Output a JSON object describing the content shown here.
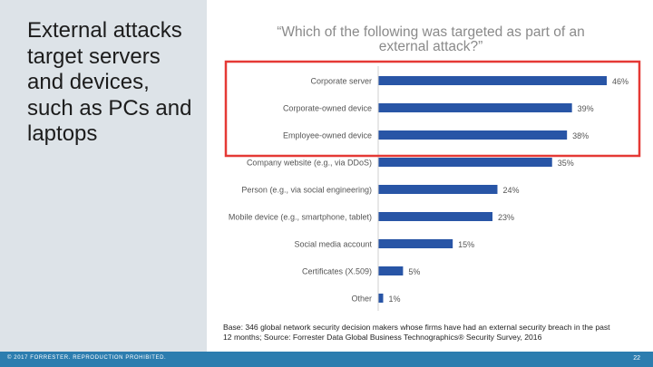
{
  "slide": {
    "title": "External attacks target servers and devices, such as PCs and laptops",
    "footer": {
      "copyright": "© 2017 FORRESTER. REPRODUCTION PROHIBITED.",
      "page_number": "22"
    },
    "base_note_line1": "Base: 346 global network security decision makers whose firms have had an external security breach in the past",
    "base_note_line2": "12 months; Source: Forrester Data Global Business Technographics® Security Survey, 2016",
    "colors": {
      "left_panel": "#dde3e8",
      "bar": "#2855a6",
      "highlight_box": "#e53935",
      "footer_bar": "#2c7daf"
    }
  },
  "chart_data": {
    "type": "bar",
    "orientation": "horizontal",
    "title_line1": "“Which of the following was targeted as part of an",
    "title_line2": "external attack?”",
    "categories": [
      "Corporate server",
      "Corporate-owned device",
      "Employee-owned device",
      "Company website (e.g., via DDoS)",
      "Person (e.g., via social engineering)",
      "Mobile device (e.g., smartphone, tablet)",
      "Social media account",
      "Certificates (X.509)",
      "Other"
    ],
    "values": [
      46,
      39,
      38,
      35,
      24,
      23,
      15,
      5,
      1
    ],
    "value_labels": [
      "46%",
      "39%",
      "38%",
      "35%",
      "24%",
      "23%",
      "15%",
      "5%",
      "1%"
    ],
    "unit": "%",
    "xlim": [
      0,
      46
    ],
    "highlighted": [
      "Corporate server",
      "Corporate-owned device",
      "Employee-owned device"
    ],
    "grid": false,
    "legend": "none"
  }
}
